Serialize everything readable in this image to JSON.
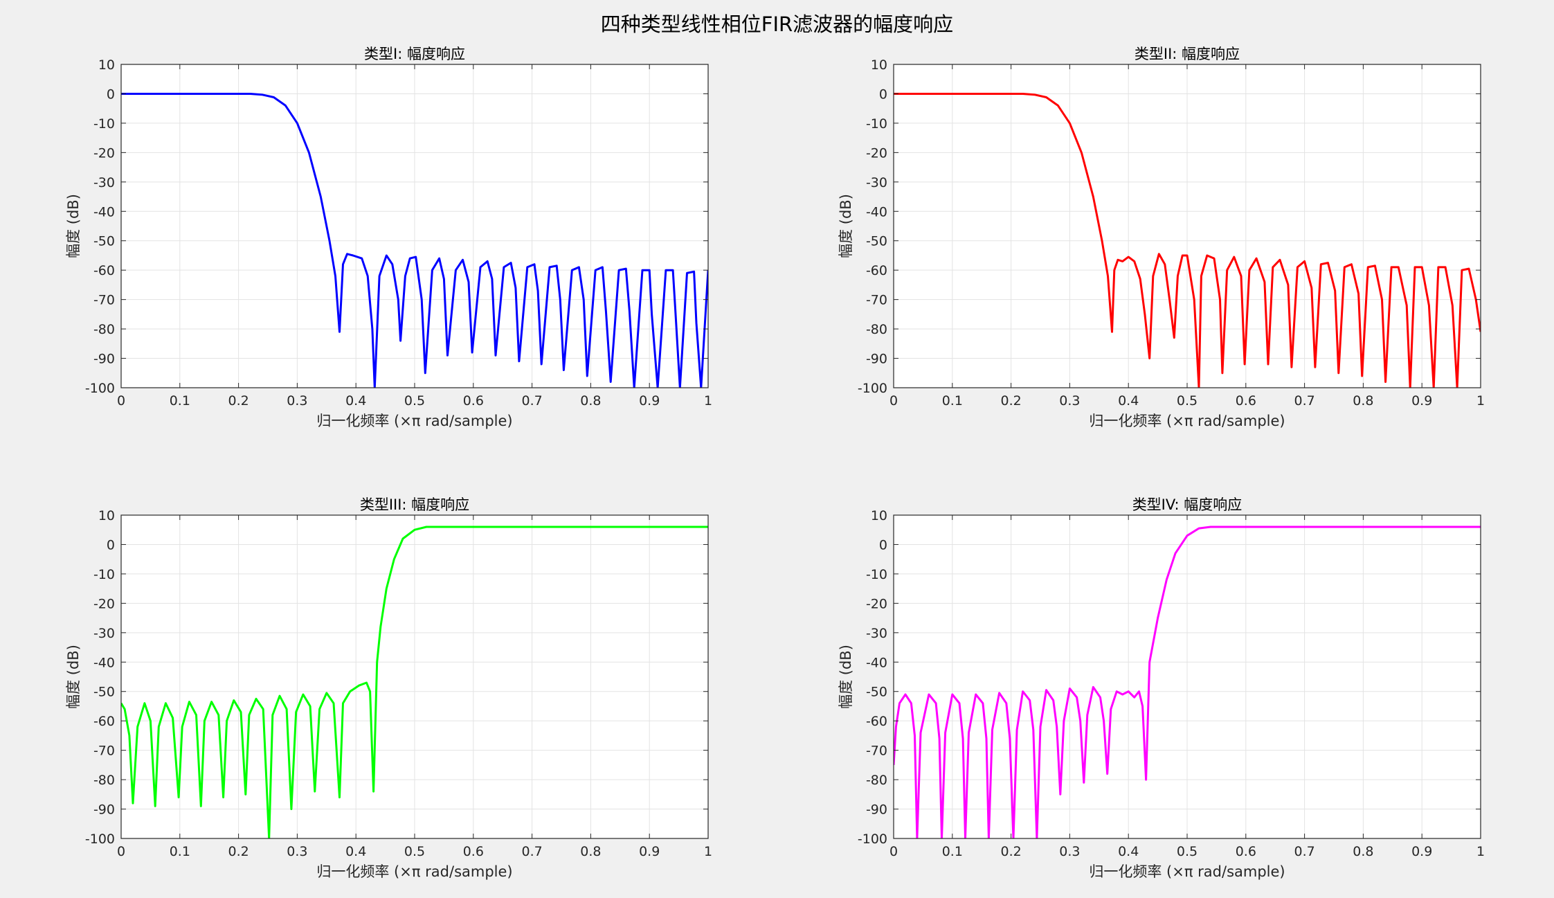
{
  "figure_title": "四种类型线性相位FIR滤波器的幅度响应",
  "chart_data": [
    {
      "type": "line",
      "title": "类型I: 幅度响应",
      "xlabel": "归一化频率 (×π rad/sample)",
      "ylabel": "幅度 (dB)",
      "xlim": [
        0,
        1
      ],
      "ylim": [
        -100,
        10
      ],
      "xticks": [
        "0",
        "0.1",
        "0.2",
        "0.3",
        "0.4",
        "0.5",
        "0.6",
        "0.7",
        "0.8",
        "0.9",
        "1"
      ],
      "yticks": [
        "10",
        "0",
        "-10",
        "-20",
        "-30",
        "-40",
        "-50",
        "-60",
        "-70",
        "-80",
        "-90",
        "-100"
      ],
      "grid": true,
      "color": "#0000ff",
      "series": [
        {
          "x": [
            0,
            0.1,
            0.2,
            0.22,
            0.24,
            0.26,
            0.28,
            0.3,
            0.32,
            0.34,
            0.355,
            0.365,
            0.372,
            0.378,
            0.385,
            0.395,
            0.41,
            0.42,
            0.428,
            0.432,
            0.44,
            0.452,
            0.462,
            0.472,
            0.476,
            0.484,
            0.492,
            0.502,
            0.512,
            0.518,
            0.53,
            0.542,
            0.55,
            0.556,
            0.57,
            0.582,
            0.592,
            0.598,
            0.612,
            0.624,
            0.632,
            0.638,
            0.652,
            0.664,
            0.672,
            0.678,
            0.692,
            0.704,
            0.71,
            0.716,
            0.73,
            0.742,
            0.748,
            0.754,
            0.768,
            0.78,
            0.788,
            0.794,
            0.808,
            0.82,
            0.826,
            0.834,
            0.848,
            0.86,
            0.866,
            0.874,
            0.888,
            0.9,
            0.904,
            0.914,
            0.928,
            0.94,
            0.944,
            0.952,
            0.964,
            0.976,
            0.98,
            0.988,
            1
          ],
          "y": [
            0,
            0,
            0,
            0,
            -0.3,
            -1.2,
            -4,
            -10,
            -20,
            -35,
            -50,
            -62,
            -81,
            -58,
            -54.5,
            -55,
            -56,
            -62,
            -80,
            -100,
            -62,
            -55,
            -58,
            -70,
            -84,
            -62,
            -56,
            -55.5,
            -70,
            -95,
            -60,
            -56,
            -63,
            -89,
            -60,
            -56.5,
            -64,
            -88,
            -59,
            -57,
            -63,
            -89,
            -59,
            -57.5,
            -66,
            -91,
            -59,
            -58,
            -67,
            -92,
            -59,
            -58.5,
            -70,
            -94,
            -60,
            -59,
            -70,
            -96,
            -60,
            -59,
            -74,
            -98,
            -60,
            -59.5,
            -74,
            -100,
            -60,
            -60,
            -75,
            -100,
            -60,
            -60,
            -73,
            -100,
            -61,
            -60.5,
            -78,
            -100,
            -60
          ]
        }
      ]
    },
    {
      "type": "line",
      "title": "类型II: 幅度响应",
      "xlabel": "归一化频率 (×π rad/sample)",
      "ylabel": "幅度 (dB)",
      "xlim": [
        0,
        1
      ],
      "ylim": [
        -100,
        10
      ],
      "xticks": [
        "0",
        "0.1",
        "0.2",
        "0.3",
        "0.4",
        "0.5",
        "0.6",
        "0.7",
        "0.8",
        "0.9",
        "1"
      ],
      "yticks": [
        "10",
        "0",
        "-10",
        "-20",
        "-30",
        "-40",
        "-50",
        "-60",
        "-70",
        "-80",
        "-90",
        "-100"
      ],
      "grid": true,
      "color": "#ff0000",
      "series": [
        {
          "x": [
            0,
            0.1,
            0.2,
            0.22,
            0.24,
            0.26,
            0.28,
            0.3,
            0.32,
            0.34,
            0.355,
            0.365,
            0.372,
            0.376,
            0.382,
            0.39,
            0.4,
            0.41,
            0.42,
            0.428,
            0.436,
            0.442,
            0.452,
            0.462,
            0.47,
            0.478,
            0.484,
            0.492,
            0.5,
            0.512,
            0.52,
            0.524,
            0.534,
            0.546,
            0.556,
            0.56,
            0.568,
            0.58,
            0.592,
            0.598,
            0.606,
            0.618,
            0.632,
            0.638,
            0.646,
            0.658,
            0.672,
            0.678,
            0.688,
            0.7,
            0.712,
            0.718,
            0.728,
            0.74,
            0.752,
            0.758,
            0.768,
            0.78,
            0.792,
            0.798,
            0.808,
            0.82,
            0.832,
            0.838,
            0.848,
            0.86,
            0.874,
            0.88,
            0.888,
            0.9,
            0.912,
            0.92,
            0.928,
            0.94,
            0.952,
            0.96,
            0.968,
            0.98,
            0.992,
            1
          ],
          "y": [
            0,
            0,
            0,
            0,
            -0.3,
            -1.2,
            -4,
            -10,
            -20,
            -35,
            -50,
            -62,
            -81,
            -60,
            -56.5,
            -57,
            -55.5,
            -57,
            -63,
            -75,
            -90,
            -62,
            -54.5,
            -58,
            -70,
            -83,
            -62,
            -55,
            -55,
            -70,
            -100,
            -62,
            -55,
            -56,
            -70,
            -95,
            -60,
            -55.5,
            -62,
            -92,
            -60,
            -56,
            -64,
            -92,
            -59,
            -56.5,
            -65,
            -93,
            -59,
            -57,
            -66,
            -93,
            -58,
            -57.5,
            -67,
            -95,
            -59,
            -58,
            -68,
            -96,
            -59,
            -58.5,
            -70,
            -98,
            -59,
            -59,
            -72,
            -100,
            -59,
            -59,
            -72,
            -100,
            -59,
            -59,
            -72,
            -100,
            -60,
            -59.5,
            -70,
            -81
          ]
        }
      ]
    },
    {
      "type": "line",
      "title": "类型III: 幅度响应",
      "xlabel": "归一化频率 (×π rad/sample)",
      "ylabel": "幅度 (dB)",
      "xlim": [
        0,
        1
      ],
      "ylim": [
        -100,
        10
      ],
      "xticks": [
        "0",
        "0.1",
        "0.2",
        "0.3",
        "0.4",
        "0.5",
        "0.6",
        "0.7",
        "0.8",
        "0.9",
        "1"
      ],
      "yticks": [
        "10",
        "0",
        "-10",
        "-20",
        "-30",
        "-40",
        "-50",
        "-60",
        "-70",
        "-80",
        "-90",
        "-100"
      ],
      "grid": true,
      "color": "#00ff00",
      "series": [
        {
          "x": [
            0,
            0.006,
            0.014,
            0.02,
            0.028,
            0.04,
            0.05,
            0.058,
            0.064,
            0.076,
            0.088,
            0.098,
            0.104,
            0.116,
            0.128,
            0.136,
            0.142,
            0.154,
            0.166,
            0.174,
            0.18,
            0.192,
            0.204,
            0.212,
            0.218,
            0.23,
            0.242,
            0.252,
            0.258,
            0.27,
            0.282,
            0.29,
            0.298,
            0.31,
            0.322,
            0.33,
            0.338,
            0.35,
            0.362,
            0.372,
            0.378,
            0.39,
            0.405,
            0.418,
            0.424,
            0.43,
            0.436,
            0.442,
            0.452,
            0.465,
            0.48,
            0.5,
            0.52,
            0.54,
            0.56,
            0.6,
            0.7,
            0.8,
            0.9,
            1
          ],
          "y": [
            -54,
            -56,
            -65,
            -88,
            -62,
            -54,
            -60,
            -89,
            -62,
            -54,
            -59,
            -86,
            -62,
            -53.5,
            -58,
            -89,
            -60,
            -53.5,
            -58,
            -86,
            -60,
            -53,
            -57,
            -85,
            -58,
            -52.5,
            -56,
            -100,
            -58,
            -51.5,
            -56,
            -90,
            -57,
            -51,
            -55,
            -84,
            -56,
            -50.5,
            -54,
            -86,
            -54,
            -50,
            -48,
            -47,
            -50,
            -84,
            -40,
            -28,
            -15,
            -5,
            2,
            5,
            6,
            6,
            6,
            6,
            6,
            6,
            6,
            6
          ]
        }
      ]
    },
    {
      "type": "line",
      "title": "类型IV: 幅度响应",
      "xlabel": "归一化频率 (×π rad/sample)",
      "ylabel": "幅度 (dB)",
      "xlim": [
        0,
        1
      ],
      "ylim": [
        -100,
        10
      ],
      "xticks": [
        "0",
        "0.1",
        "0.2",
        "0.3",
        "0.4",
        "0.5",
        "0.6",
        "0.7",
        "0.8",
        "0.9",
        "1"
      ],
      "yticks": [
        "10",
        "0",
        "-10",
        "-20",
        "-30",
        "-40",
        "-50",
        "-60",
        "-70",
        "-80",
        "-90",
        "-100"
      ],
      "grid": true,
      "color": "#ff00ff",
      "series": [
        {
          "x": [
            0,
            0.004,
            0.01,
            0.02,
            0.03,
            0.036,
            0.04,
            0.046,
            0.06,
            0.072,
            0.078,
            0.082,
            0.088,
            0.1,
            0.112,
            0.118,
            0.122,
            0.128,
            0.14,
            0.152,
            0.158,
            0.162,
            0.168,
            0.18,
            0.192,
            0.198,
            0.204,
            0.21,
            0.22,
            0.232,
            0.238,
            0.244,
            0.25,
            0.26,
            0.272,
            0.278,
            0.284,
            0.29,
            0.3,
            0.312,
            0.318,
            0.324,
            0.33,
            0.34,
            0.352,
            0.358,
            0.364,
            0.37,
            0.38,
            0.39,
            0.4,
            0.41,
            0.418,
            0.424,
            0.43,
            0.436,
            0.45,
            0.465,
            0.48,
            0.5,
            0.52,
            0.54,
            0.56,
            0.6,
            0.7,
            0.8,
            0.9,
            1
          ],
          "y": [
            -75,
            -62,
            -54,
            -51,
            -54,
            -65,
            -100,
            -64,
            -51,
            -54,
            -66,
            -100,
            -64,
            -51,
            -54,
            -66,
            -100,
            -64,
            -51,
            -54,
            -66,
            -100,
            -63,
            -50.5,
            -54,
            -66,
            -100,
            -63,
            -50,
            -53,
            -63,
            -100,
            -62,
            -49.5,
            -53,
            -62,
            -85,
            -60,
            -49,
            -52,
            -60,
            -81,
            -58,
            -48.5,
            -52,
            -60,
            -78,
            -56,
            -50,
            -51,
            -50,
            -52,
            -50,
            -55,
            -80,
            -40,
            -25,
            -12,
            -3,
            3,
            5.5,
            6,
            6,
            6,
            6,
            6,
            6,
            6
          ]
        }
      ]
    }
  ]
}
